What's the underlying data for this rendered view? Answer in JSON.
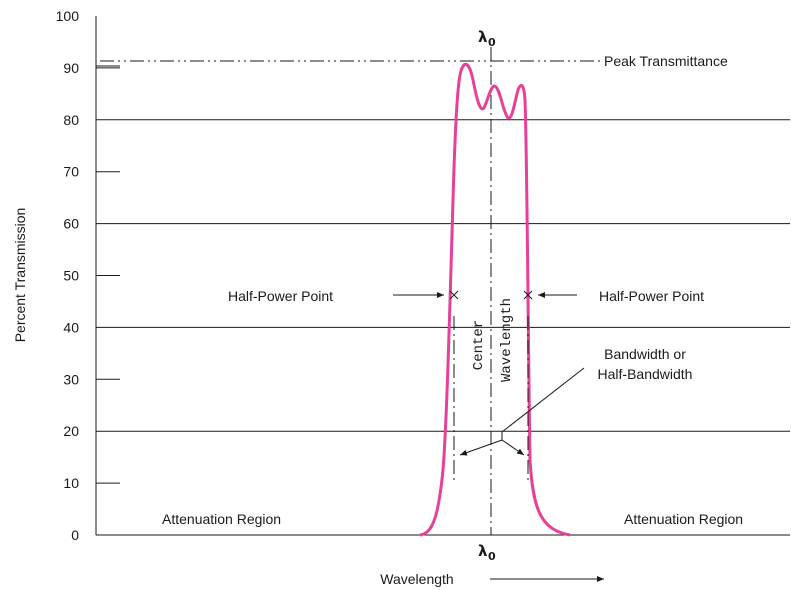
{
  "chart_data": {
    "type": "line",
    "ylabel": "Percent Transmission",
    "xlabel": "Wavelength",
    "ylim": [
      0,
      100
    ],
    "yticks": [
      "0",
      "10",
      "20",
      "30",
      "40",
      "50",
      "60",
      "70",
      "80",
      "90",
      "100"
    ],
    "grid": "horizontal at 20, 40, 60, 80",
    "series_color": "#e6409a",
    "annotations": {
      "peak": "Peak Transmittance",
      "half_power_left": "Half-Power Point",
      "half_power_right": "Half-Power Point",
      "center_line1": "Center",
      "center_line2": "Wavelength",
      "bandwidth_line1": "Bandwidth or",
      "bandwidth_line2": "Half-Bandwidth",
      "attenuation_left": "Attenuation Region",
      "attenuation_right": "Attenuation Region",
      "lambda_symbol": "λ",
      "lambda_sub": "0"
    }
  }
}
